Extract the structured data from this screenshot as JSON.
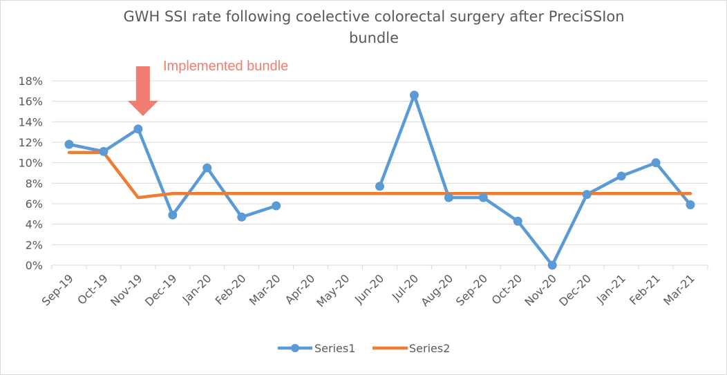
{
  "chart_data": {
    "type": "line",
    "title": "GWH SSI rate following coelective colorectal surgery after PreciSSIon bundle",
    "title_lines": [
      "GWH SSI rate following coelective colorectal surgery after PreciSSIon",
      "bundle"
    ],
    "xlabel": "",
    "ylabel": "",
    "categories": [
      "Sep-19",
      "Oct-19",
      "Nov-19",
      "Dec-19",
      "Jan-20",
      "Feb-20",
      "Mar-20",
      "Apr-20",
      "May-20",
      "Jun-20",
      "Jul-20",
      "Aug-20",
      "Sep-20",
      "Oct-20",
      "Nov-20",
      "Dec-20",
      "Jan-21",
      "Feb-21",
      "Mar-21"
    ],
    "ylim": [
      0,
      18
    ],
    "yticks": [
      "0%",
      "2%",
      "4%",
      "6%",
      "8%",
      "10%",
      "12%",
      "14%",
      "16%",
      "18%"
    ],
    "grid": true,
    "legend_position": "bottom",
    "series": [
      {
        "name": "Series1",
        "color": "#5b9bd5",
        "markers": true,
        "values": [
          11.8,
          11.1,
          13.3,
          4.9,
          9.5,
          4.7,
          5.8,
          null,
          null,
          7.7,
          16.6,
          6.6,
          6.6,
          4.3,
          0.0,
          6.9,
          8.7,
          10.0,
          5.9
        ]
      },
      {
        "name": "Series2",
        "color": "#ed7d31",
        "markers": false,
        "values": [
          11.0,
          11.0,
          6.6,
          7.0,
          7.0,
          7.0,
          7.0,
          7.0,
          7.0,
          7.0,
          7.0,
          7.0,
          7.0,
          7.0,
          7.0,
          7.0,
          7.0,
          7.0,
          7.0
        ]
      }
    ],
    "annotation": {
      "text": "Implemented bundle",
      "color": "#f07c72",
      "category": "Nov-19",
      "icon": "down-arrow-icon"
    }
  }
}
